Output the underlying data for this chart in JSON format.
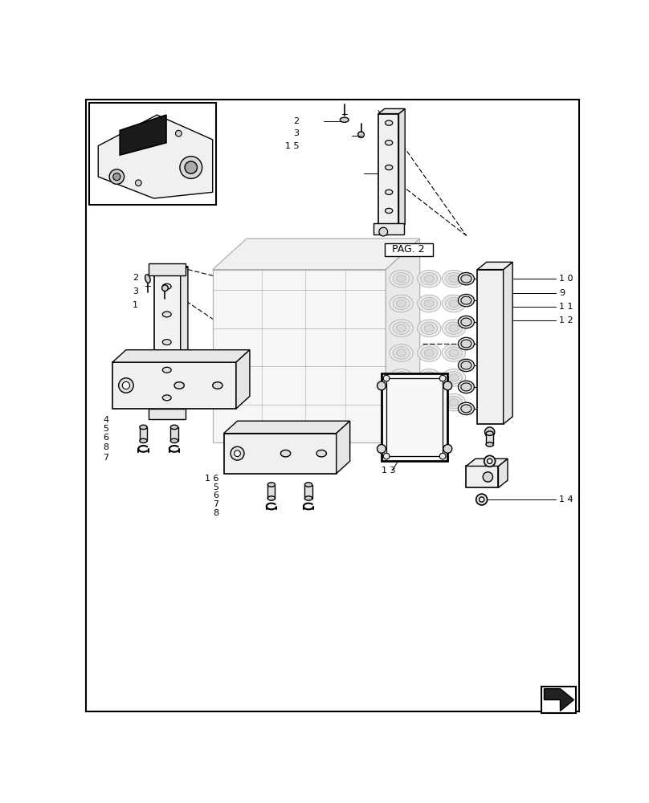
{
  "bg_color": "#ffffff",
  "line_color": "#000000",
  "mid_gray": "#aaaaaa",
  "light_gray": "#dddddd",
  "page_label": "PAG. 2",
  "fig_width": 8.08,
  "fig_height": 10.0,
  "dpi": 100
}
